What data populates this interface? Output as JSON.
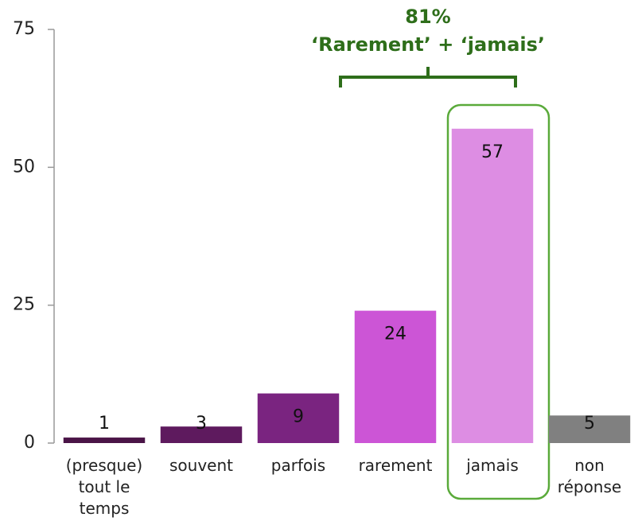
{
  "chart_data": {
    "type": "bar",
    "annotation": [
      "81%",
      "‘Rarement’ + ‘jamais’"
    ],
    "categories": [
      "(presque) tout le temps",
      "souvent",
      "parfois",
      "rarement",
      "jamais",
      "non réponse"
    ],
    "values": [
      1,
      3,
      9,
      24,
      57,
      5
    ],
    "colors": [
      "#4a1447",
      "#5e1a5e",
      "#7a2480",
      "#cc55d6",
      "#dd8de3",
      "#808080"
    ],
    "ylim": [
      0,
      75
    ],
    "yticks": [
      0,
      25,
      50,
      75
    ],
    "grid": false
  }
}
